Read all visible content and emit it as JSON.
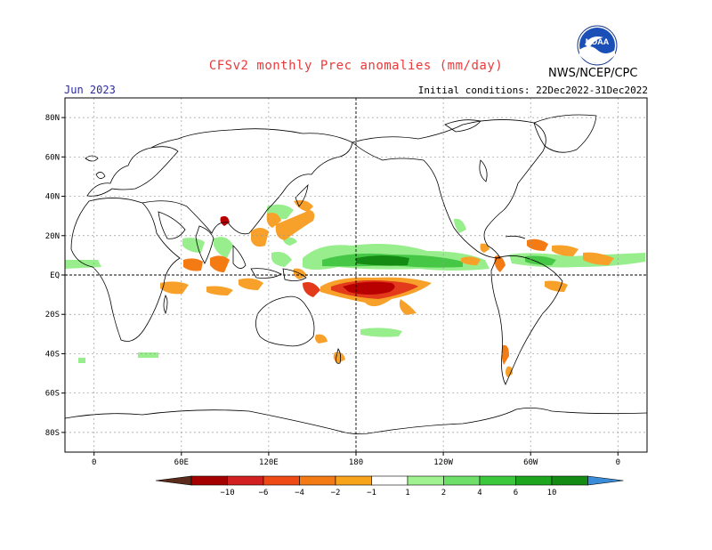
{
  "header": {
    "title": "CFSv2 monthly Prec anomalies (mm/day)",
    "valid_month": "Jun 2023",
    "initial_conditions": "Initial conditions: 22Dec2022-31Dec2022",
    "agency": "NWS/NCEP/CPC",
    "logo_text": "NOAA"
  },
  "map": {
    "lat_labels": [
      "80N",
      "60N",
      "40N",
      "20N",
      "EQ",
      "20S",
      "40S",
      "60S",
      "80S"
    ],
    "lat_values": [
      80,
      60,
      40,
      20,
      0,
      -20,
      -40,
      -60,
      -80
    ],
    "lon_labels": [
      "0",
      "60E",
      "120E",
      "180",
      "120W",
      "60W",
      "0"
    ],
    "lon_values": [
      0,
      60,
      120,
      180,
      240,
      300,
      360
    ],
    "lon_range": [
      -20,
      380
    ],
    "lat_range": [
      -90,
      90
    ]
  },
  "colorbar": {
    "tick_labels": [
      "-10",
      "-6",
      "-4",
      "-2",
      "-1",
      "1",
      "2",
      "4",
      "6",
      "10"
    ],
    "colors": [
      "#5b2b1b",
      "#a50000",
      "#d22020",
      "#f04a14",
      "#f47a14",
      "#f8a41a",
      "#ffffff",
      "#a0f290",
      "#6ee06a",
      "#3cc83c",
      "#1ea51e",
      "#148c14",
      "#3a8cd8"
    ]
  },
  "colors": {
    "title": "#e83a3a",
    "month": "#2a2aa0",
    "dry_strong": "#b80000",
    "dry_mid": "#e23a1a",
    "dry_light": "#f7a12a",
    "wet_light": "#98ee8c",
    "wet_mid": "#46c846",
    "wet_strong": "#148c14"
  }
}
